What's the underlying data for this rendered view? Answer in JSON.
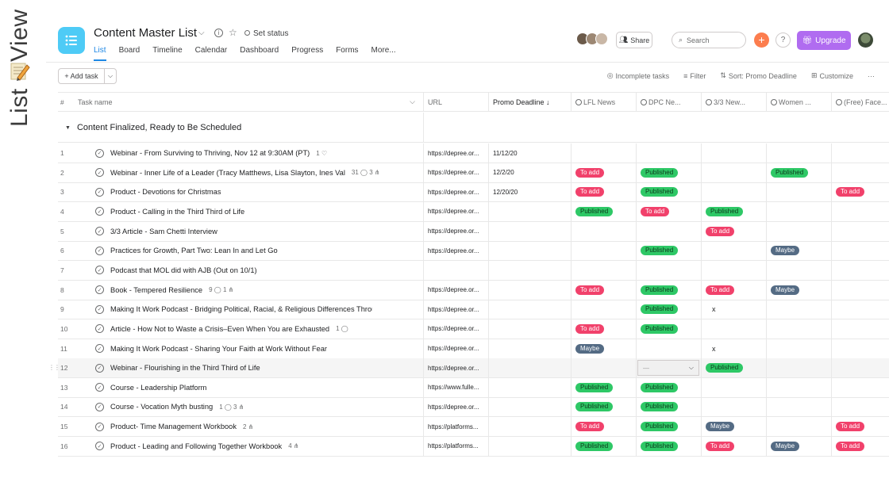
{
  "caption": {
    "line1": "List",
    "line2": "View"
  },
  "project": {
    "title": "Content Master List",
    "set_status": "Set status"
  },
  "tabs": [
    "List",
    "Board",
    "Timeline",
    "Calendar",
    "Dashboard",
    "Progress",
    "Forms",
    "More..."
  ],
  "header": {
    "share": "Share",
    "search_placeholder": "Search",
    "upgrade": "Upgrade"
  },
  "toolbar": {
    "add_task": "+ Add task",
    "incomplete": "Incomplete tasks",
    "filter": "Filter",
    "sort": "Sort: Promo Deadline",
    "customize": "Customize",
    "more": "···"
  },
  "columns": {
    "num": "#",
    "name": "Task name",
    "url": "URL",
    "promo": "Promo Deadline ↓",
    "lfl": "LFL News",
    "dpc": "DPC Ne...",
    "n33": "3/3 New...",
    "women": "Women ...",
    "face": "(Free) Face..."
  },
  "section": {
    "title": "Content Finalized, Ready to Be Scheduled"
  },
  "colors": {
    "published": "#2ec866",
    "to_add": "#f1416b",
    "maybe": "#546b84",
    "accent": "#1e88e5",
    "upgrade": "#b06cf0"
  },
  "rows": [
    {
      "n": "1",
      "name": "Webinar - From Surviving to Thriving, Nov 12 at 9:30AM (PT)",
      "meta": "1 ♡",
      "url": "https://depree.or...",
      "promo": "11/12/20",
      "lfl": "",
      "dpc": "",
      "n33": "",
      "women": "",
      "face": ""
    },
    {
      "n": "2",
      "name": "Webinar - Inner Life of a Leader (Tracy Matthews, Lisa Slayton, Ines Val",
      "meta": "31 ◯  3 ⋔",
      "url": "https://depree.or...",
      "promo": "12/2/20",
      "lfl": "To add",
      "dpc": "Published",
      "n33": "",
      "women": "Published",
      "face": ""
    },
    {
      "n": "3",
      "name": "Product - Devotions for Christmas",
      "meta": "",
      "url": "https://depree.or...",
      "promo": "12/20/20",
      "lfl": "To add",
      "dpc": "Published",
      "n33": "",
      "women": "",
      "face": "To add"
    },
    {
      "n": "4",
      "name": "Product - Calling in the Third Third of Life",
      "meta": "",
      "url": "https://depree.or...",
      "promo": "",
      "lfl": "Published",
      "dpc": "To add",
      "n33": "Published",
      "women": "",
      "face": ""
    },
    {
      "n": "5",
      "name": "3/3 Article - Sam Chetti Interview",
      "meta": "",
      "url": "https://depree.or...",
      "promo": "",
      "lfl": "",
      "dpc": "",
      "n33": "To add",
      "women": "",
      "face": ""
    },
    {
      "n": "6",
      "name": "Practices for Growth, Part Two: Lean In and Let Go",
      "meta": "",
      "url": "https://depree.or...",
      "promo": "",
      "lfl": "",
      "dpc": "Published",
      "n33": "",
      "women": "Maybe",
      "face": ""
    },
    {
      "n": "7",
      "name": "Podcast that MOL did with AJB (Out on 10/1)",
      "meta": "",
      "url": "",
      "promo": "",
      "lfl": "",
      "dpc": "",
      "n33": "",
      "women": "",
      "face": ""
    },
    {
      "n": "8",
      "name": "Book - Tempered Resilience",
      "meta": "9 ◯  1 ⋔",
      "url": "https://depree.or...",
      "promo": "",
      "lfl": "To add",
      "dpc": "Published",
      "n33": "To add",
      "women": "Maybe",
      "face": ""
    },
    {
      "n": "9",
      "name": "Making It Work Podcast - Bridging Political, Racial, & Religious Differences Throug",
      "meta": "",
      "url": "https://depree.or...",
      "promo": "",
      "lfl": "",
      "dpc": "Published",
      "n33": "x",
      "women": "",
      "face": ""
    },
    {
      "n": "10",
      "name": "Article - How Not to Waste a Crisis–Even When You are Exhausted",
      "meta": "1 ◯",
      "url": "https://depree.or...",
      "promo": "",
      "lfl": "To add",
      "dpc": "Published",
      "n33": "",
      "women": "",
      "face": ""
    },
    {
      "n": "11",
      "name": "Making It Work Podcast - Sharing Your Faith at Work Without Fear",
      "meta": "",
      "url": "https://depree.or...",
      "promo": "",
      "lfl": "Maybe",
      "dpc": "",
      "n33": "x",
      "women": "",
      "face": ""
    },
    {
      "n": "12",
      "name": "Webinar - Flourishing in the Third Third of Life",
      "meta": "",
      "url": "https://depree.or...",
      "promo": "",
      "lfl": "",
      "dpc": "—",
      "n33": "Published",
      "women": "",
      "face": ""
    },
    {
      "n": "13",
      "name": "Course - Leadership Platform",
      "meta": "",
      "url": "https://www.fulle...",
      "promo": "",
      "lfl": "Published",
      "dpc": "Published",
      "n33": "",
      "women": "",
      "face": ""
    },
    {
      "n": "14",
      "name": "Course - Vocation Myth busting",
      "meta": "1 ◯  3 ⋔",
      "url": "https://depree.or...",
      "promo": "",
      "lfl": "Published",
      "dpc": "Published",
      "n33": "",
      "women": "",
      "face": ""
    },
    {
      "n": "15",
      "name": "Product- Time Management Workbook",
      "meta": "2 ⋔",
      "url": "https://platforms...",
      "promo": "",
      "lfl": "To add",
      "dpc": "Published",
      "n33": "Maybe",
      "women": "",
      "face": "To add"
    },
    {
      "n": "16",
      "name": "Product - Leading and Following Together Workbook",
      "meta": "4 ⋔",
      "url": "https://platforms...",
      "promo": "",
      "lfl": "Published",
      "dpc": "Published",
      "n33": "To add",
      "women": "Maybe",
      "face": "To add"
    }
  ]
}
